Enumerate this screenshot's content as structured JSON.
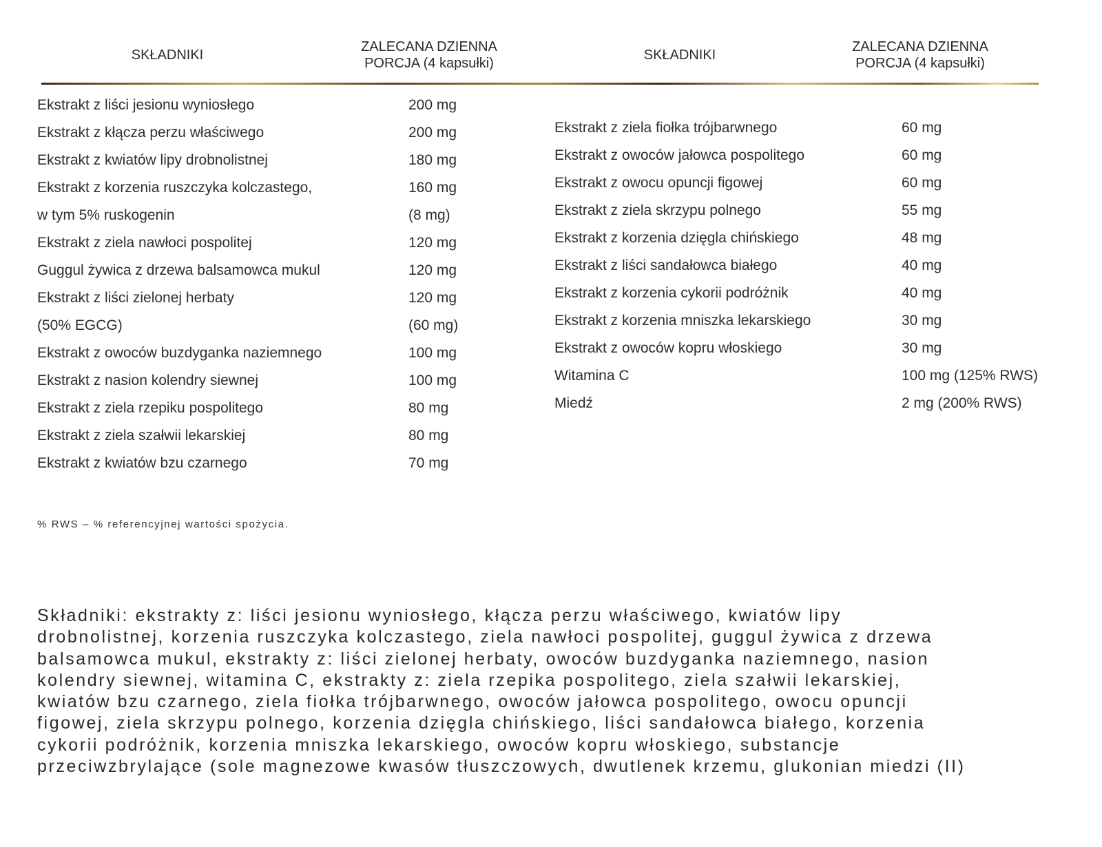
{
  "headers": {
    "left_ingredients": "SKŁADNIKI",
    "left_portion_line1": "ZALECANA DZIENNA",
    "left_portion_line2": "PORCJA (4 kapsułki)",
    "right_ingredients": "SKŁADNIKI",
    "right_portion_line1": "ZALECANA DZIENNA",
    "right_portion_line2": "PORCJA (4 kapsułki)"
  },
  "left_rows": [
    {
      "name": "Ekstrakt z liści jesionu wyniosłego",
      "amount": "200 mg"
    },
    {
      "name": "Ekstrakt z kłącza perzu właściwego",
      "amount": "200 mg"
    },
    {
      "name": "Ekstrakt z kwiatów lipy drobnolistnej",
      "amount": "180 mg"
    },
    {
      "name": "Ekstrakt z korzenia ruszczyka kolczastego,",
      "amount": "160 mg"
    },
    {
      "name": "w tym 5% ruskogenin",
      "amount": "(8 mg)"
    },
    {
      "name": "Ekstrakt z ziela nawłoci pospolitej",
      "amount": "120 mg"
    },
    {
      "name": "Guggul żywica z drzewa balsamowca mukul",
      "amount": "120 mg"
    },
    {
      "name": "Ekstrakt z liści zielonej herbaty",
      "amount": "120 mg"
    },
    {
      "name": "(50% EGCG)",
      "amount": "(60 mg)"
    },
    {
      "name": "Ekstrakt z owoców buzdyganka naziemnego",
      "amount": "100 mg"
    },
    {
      "name": "Ekstrakt z nasion kolendry siewnej",
      "amount": "100 mg"
    },
    {
      "name": "Ekstrakt z ziela rzepiku pospolitego",
      "amount": "80 mg"
    },
    {
      "name": "Ekstrakt z ziela szałwii lekarskiej",
      "amount": "80 mg"
    },
    {
      "name": "Ekstrakt z kwiatów bzu czarnego",
      "amount": "70 mg"
    }
  ],
  "right_rows": [
    {
      "name": "Ekstrakt z ziela fiołka trójbarwnego",
      "amount": "60 mg"
    },
    {
      "name": "Ekstrakt z owoców jałowca pospolitego",
      "amount": "60 mg"
    },
    {
      "name": "Ekstrakt z owocu opuncji figowej",
      "amount": "60 mg"
    },
    {
      "name": "Ekstrakt z ziela skrzypu polnego",
      "amount": "55 mg"
    },
    {
      "name": "Ekstrakt z korzenia dzięgla chińskiego",
      "amount": "48 mg"
    },
    {
      "name": "Ekstrakt z liści sandałowca białego",
      "amount": "40 mg"
    },
    {
      "name": "Ekstrakt z korzenia cykorii podróżnik",
      "amount": "40 mg"
    },
    {
      "name": "Ekstrakt z korzenia mniszka lekarskiego",
      "amount": "30 mg"
    },
    {
      "name": "Ekstrakt z owoców kopru włoskiego",
      "amount": "30 mg"
    },
    {
      "name": "Witamina C",
      "amount": "100 mg (125% RWS)"
    },
    {
      "name": "Miedź",
      "amount": "2 mg (200% RWS)"
    }
  ],
  "footnote": "% RWS – % referencyjnej wartości spożycia.",
  "ingredients_paragraph": [
    "Składniki: ekstrakty z: liści jesionu wyniosłego, kłącza perzu właściwego, kwiatów lipy",
    "drobnolistnej, korzenia ruszczyka kolczastego, ziela nawłoci pospolitej, guggul żywica z drzewa",
    "balsamowca mukul, ekstrakty z: liści zielonej herbaty, owoców buzdyganka naziemnego, nasion",
    "kolendry siewnej, witamina C, ekstrakty z: ziela rzepika pospolitego, ziela szałwii lekarskiej,",
    "kwiatów bzu czarnego, ziela fiołka trójbarwnego, owoców jałowca pospolitego, owocu opuncji",
    "figowej, ziela skrzypu polnego, korzenia dzięgla chińskiego, liści sandałowca białego, korzenia",
    "cykorii podróżnik, korzenia mniszka lekarskiego, owoców kopru włoskiego, substancje",
    "przeciwzbrylające (sole magnezowe kwasów tłuszczowych, dwutlenek krzemu, glukonian miedzi (II)"
  ],
  "colors": {
    "text": "#2e2e2e",
    "divider_gold": "#c9a867"
  }
}
